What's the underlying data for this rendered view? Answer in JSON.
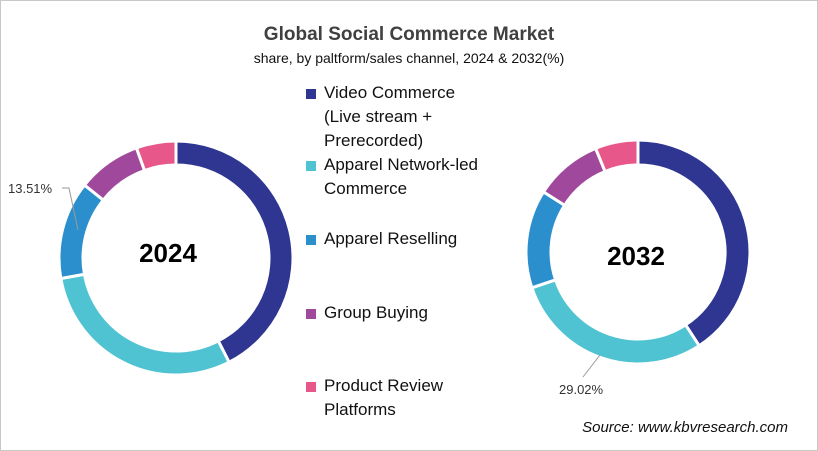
{
  "chart_data": [
    {
      "type": "pie",
      "variant": "donut",
      "title": "Global Social Commerce Market",
      "subtitle": "share, by paltform/sales channel, 2024 & 2032(%)",
      "center_label": "2024",
      "categories": [
        "Video Commerce (Live stream + Prerecorded)",
        "Apparel Network-led Commerce",
        "Apparel Reselling",
        "Group Buying",
        "Product Review Platforms"
      ],
      "values": [
        42.5,
        29.7,
        13.51,
        8.8,
        5.49
      ],
      "annotations": [
        {
          "category": "Apparel Reselling",
          "label": "13.51%"
        }
      ]
    },
    {
      "type": "pie",
      "variant": "donut",
      "title": "Global Social Commerce Market",
      "subtitle": "share, by paltform/sales channel, 2024 & 2032(%)",
      "center_label": "2032",
      "categories": [
        "Video Commerce (Live stream + Prerecorded)",
        "Apparel Network-led Commerce",
        "Apparel Reselling",
        "Group Buying",
        "Product Review Platforms"
      ],
      "values": [
        40.8,
        29.02,
        14.2,
        9.8,
        6.18
      ],
      "annotations": [
        {
          "category": "Apparel Network-led Commerce",
          "label": "29.02%"
        }
      ]
    }
  ],
  "header": {
    "title": "Global Social Commerce Market",
    "subtitle": "share, by paltform/sales channel, 2024 & 2032(%)"
  },
  "legend": {
    "items": [
      {
        "label": "Video Commerce (Live stream + Prerecorded)",
        "color": "#2e3692"
      },
      {
        "label": "Apparel Network-led Commerce",
        "color": "#4fc3d1"
      },
      {
        "label": "Apparel Reselling",
        "color": "#2b8fce"
      },
      {
        "label": "Group Buying",
        "color": "#a0489c"
      },
      {
        "label": "Product Review Platforms",
        "color": "#e8578a"
      }
    ]
  },
  "donuts": {
    "left": {
      "center_label": "2024",
      "callout": "13.51%"
    },
    "right": {
      "center_label": "2032",
      "callout": "29.02%"
    }
  },
  "source": "Source: www.kbvresearch.com"
}
